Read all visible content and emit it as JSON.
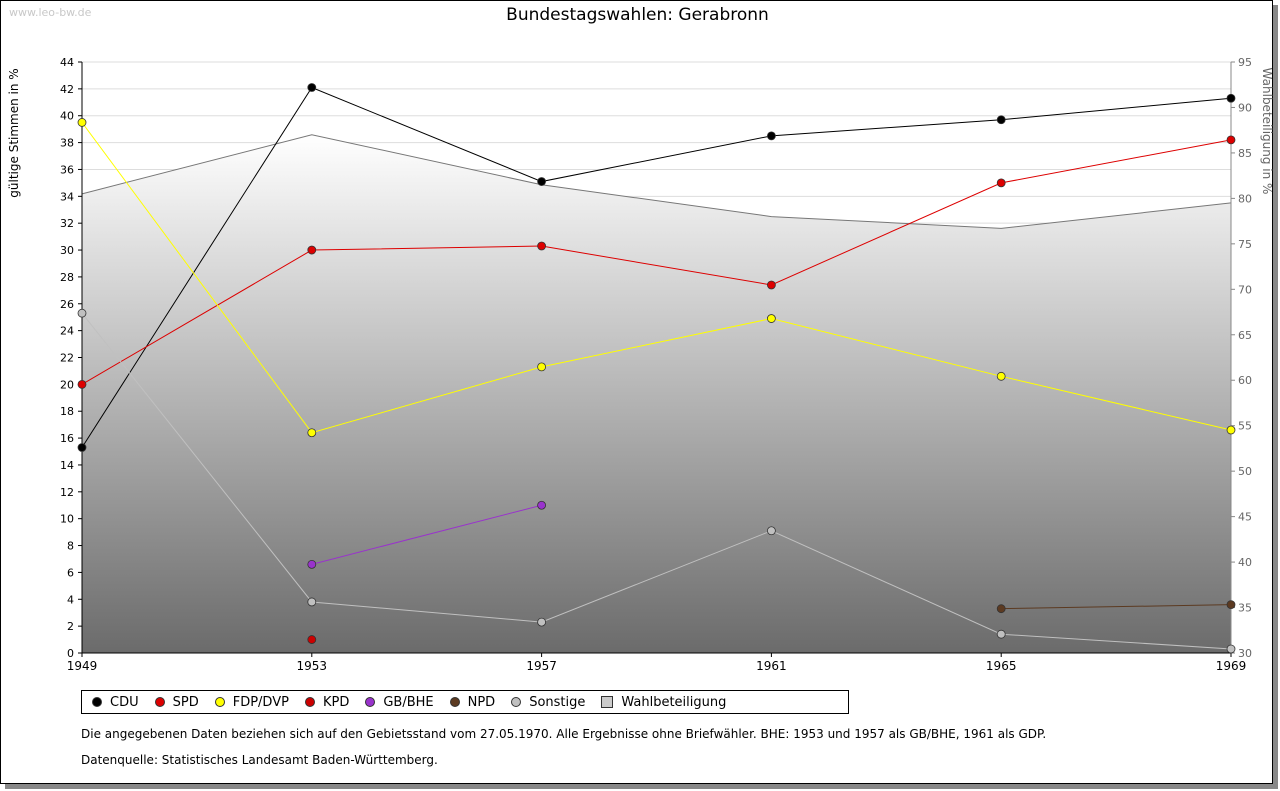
{
  "watermark": "www.leo-bw.de",
  "chart_data": {
    "type": "line",
    "title": "Bundestagswahlen: Gerabronn",
    "ylabel": "gültige Stimmen in %",
    "y2label": "Wahlbeteiligung in %",
    "x": [
      1949,
      1953,
      1957,
      1961,
      1965,
      1969
    ],
    "ylim": [
      0,
      44
    ],
    "y2lim": [
      30,
      95
    ],
    "yticks": [
      0,
      2,
      4,
      6,
      8,
      10,
      12,
      14,
      16,
      18,
      20,
      22,
      24,
      26,
      28,
      30,
      32,
      34,
      36,
      38,
      40,
      42,
      44
    ],
    "y2ticks": [
      30,
      35,
      40,
      45,
      50,
      55,
      60,
      65,
      70,
      75,
      80,
      85,
      90,
      95
    ],
    "grid": true,
    "legend_position": "bottom",
    "series": [
      {
        "name": "CDU",
        "color": "#000000",
        "values": [
          15.3,
          42.1,
          35.1,
          38.5,
          39.7,
          41.3
        ]
      },
      {
        "name": "SPD",
        "color": "#dd0000",
        "values": [
          20.0,
          30.0,
          30.3,
          27.4,
          35.0,
          38.2
        ]
      },
      {
        "name": "FDP/DVP",
        "color": "#ffff00",
        "values": [
          39.5,
          16.4,
          21.3,
          24.9,
          20.6,
          16.6
        ]
      },
      {
        "name": "KPD",
        "color": "#cc0000",
        "values": [
          null,
          1.0,
          null,
          null,
          null,
          null
        ]
      },
      {
        "name": "GB/BHE",
        "color": "#9933cc",
        "values": [
          null,
          6.6,
          11.0,
          null,
          null,
          null
        ]
      },
      {
        "name": "NPD",
        "color": "#5c3a21",
        "values": [
          null,
          null,
          null,
          null,
          3.3,
          3.6
        ]
      },
      {
        "name": "Sonstige",
        "color": "#c0c0c0",
        "values": [
          25.3,
          3.8,
          2.3,
          9.1,
          1.4,
          0.3
        ]
      },
      {
        "name": "Wahlbeteiligung",
        "color": "#cccccc",
        "axis": "right",
        "type": "area",
        "values": [
          80.5,
          87.0,
          81.5,
          78.0,
          76.7,
          79.5
        ]
      }
    ]
  },
  "footnote": "Die angegebenen Daten beziehen sich auf den Gebietsstand vom 27.05.1970. Alle Ergebnisse ohne Briefwähler. BHE: 1953 und 1957 als GB/BHE, 1961 als GDP.",
  "source": "Datenquelle: Statistisches Landesamt Baden-Württemberg."
}
